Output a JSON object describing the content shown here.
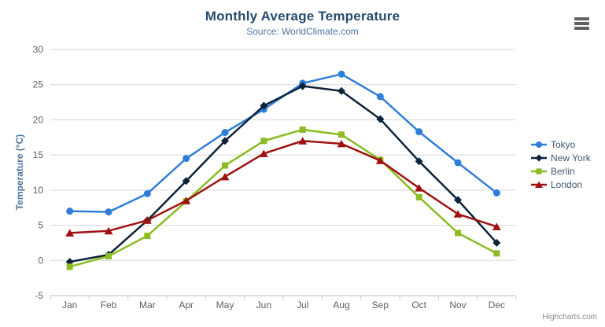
{
  "chart_data": {
    "type": "line",
    "title": "Monthly Average Temperature",
    "subtitle": "Source: WorldClimate.com",
    "xlabel": "",
    "ylabel": "Temperature (°C)",
    "ylim": [
      -5,
      30
    ],
    "yticks": [
      -5,
      0,
      5,
      10,
      15,
      20,
      25,
      30
    ],
    "grid": true,
    "legend_position": "right",
    "categories": [
      "Jan",
      "Feb",
      "Mar",
      "Apr",
      "May",
      "Jun",
      "Jul",
      "Aug",
      "Sep",
      "Oct",
      "Nov",
      "Dec"
    ],
    "series": [
      {
        "name": "Tokyo",
        "color": "#2f7ed8",
        "marker": "circle",
        "values": [
          7.0,
          6.9,
          9.5,
          14.5,
          18.2,
          21.5,
          25.2,
          26.5,
          23.3,
          18.3,
          13.9,
          9.6
        ]
      },
      {
        "name": "New York",
        "color": "#0d233a",
        "marker": "diamond",
        "values": [
          -0.2,
          0.8,
          5.7,
          11.3,
          17.0,
          22.0,
          24.8,
          24.1,
          20.1,
          14.1,
          8.6,
          2.5
        ]
      },
      {
        "name": "Berlin",
        "color": "#8bbc21",
        "marker": "square",
        "values": [
          -0.9,
          0.6,
          3.5,
          8.4,
          13.5,
          17.0,
          18.6,
          17.9,
          14.3,
          9.0,
          3.9,
          1.0
        ]
      },
      {
        "name": "London",
        "color": "#a01212",
        "marker": "triangle",
        "values": [
          3.9,
          4.2,
          5.7,
          8.5,
          11.9,
          15.2,
          17.0,
          16.6,
          14.2,
          10.3,
          6.6,
          4.8
        ]
      }
    ]
  },
  "credits": {
    "label": "Highcharts.com"
  },
  "icons": {
    "context_menu": "hamburger-icon"
  },
  "colors": {
    "grid": "#d8d8d8",
    "axis_line": "#c0d0e0",
    "title": "#274b6d",
    "subtitle": "#4d759e",
    "axis_label": "#606060",
    "legend_text": "#3e576f"
  }
}
